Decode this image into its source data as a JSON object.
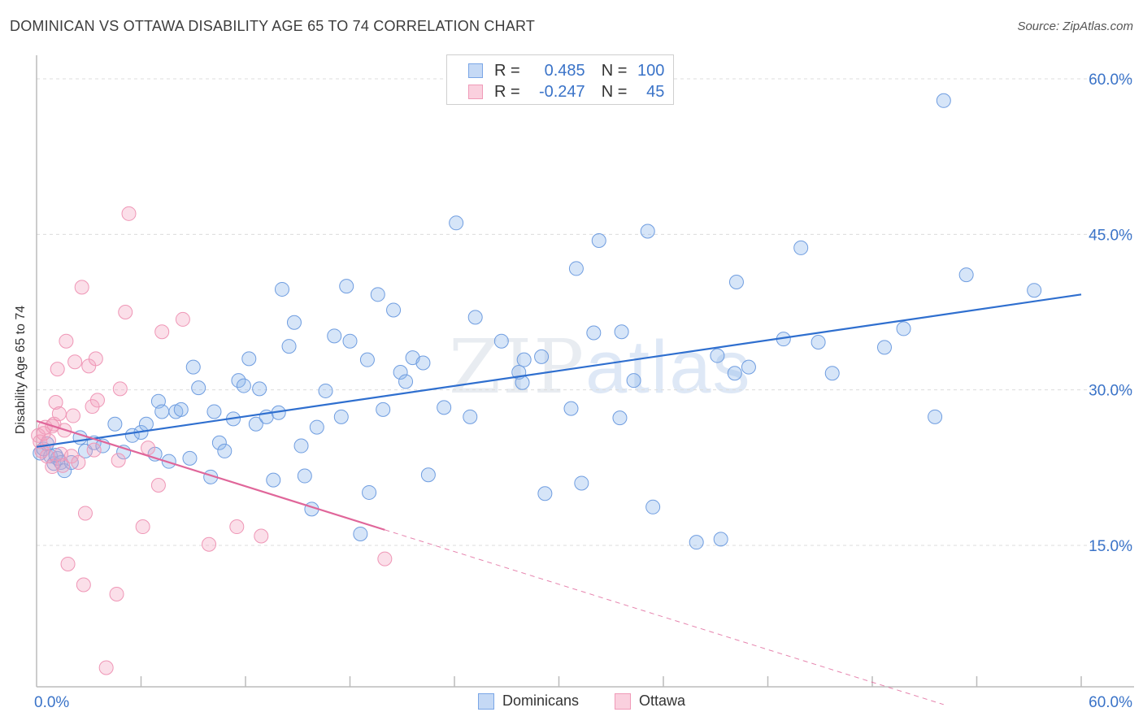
{
  "header": {
    "title": "DOMINICAN VS OTTAWA DISABILITY AGE 65 TO 74 CORRELATION CHART",
    "source": "Source: ZipAtlas.com"
  },
  "watermark": {
    "zip": "ZIP",
    "atlas": "atlas"
  },
  "legend": {
    "rows": [
      {
        "r_label": "R =",
        "r_value": "0.485",
        "n_label": "N =",
        "n_value": "100",
        "color": "#8ab4ec"
      },
      {
        "r_label": "R =",
        "r_value": "-0.247",
        "n_label": "N =",
        "n_value": "45",
        "color": "#f4a3c0"
      }
    ]
  },
  "bottom_legend": {
    "series1": "Dominicans",
    "series2": "Ottawa"
  },
  "chart_data": {
    "type": "scatter",
    "title": "DOMINICAN VS OTTAWA DISABILITY AGE 65 TO 74 CORRELATION CHART",
    "xlabel": "",
    "ylabel": "Disability Age 65 to 74",
    "xlim": [
      0,
      60
    ],
    "ylim": [
      0,
      60
    ],
    "x_tick_labels": [
      "0.0%",
      "60.0%"
    ],
    "y_ticks": [
      15,
      30,
      45,
      60
    ],
    "y_tick_labels": [
      "15.0%",
      "30.0%",
      "45.0%",
      "60.0%"
    ],
    "grid": true,
    "colors": {
      "dominicans": "#5b8fd9",
      "ottawa": "#ee7fa5",
      "trend_blue": "#2f6fcf",
      "trend_pink": "#e0669a",
      "axis_text": "#3a73c8"
    },
    "series": [
      {
        "name": "Dominicans",
        "trend": {
          "x0": 0,
          "y0": 24.5,
          "x1": 60,
          "y1": 39.2
        },
        "points": [
          [
            0.2,
            23.9
          ],
          [
            0.4,
            24.3
          ],
          [
            0.6,
            24.8
          ],
          [
            0.8,
            23.6
          ],
          [
            1.0,
            22.9
          ],
          [
            1.2,
            23.4
          ],
          [
            1.4,
            23.0
          ],
          [
            1.6,
            22.2
          ],
          [
            2.0,
            23.0
          ],
          [
            2.5,
            25.4
          ],
          [
            2.8,
            24.1
          ],
          [
            3.3,
            24.9
          ],
          [
            3.8,
            24.6
          ],
          [
            4.5,
            26.7
          ],
          [
            5.0,
            24.0
          ],
          [
            5.5,
            25.6
          ],
          [
            6.0,
            25.9
          ],
          [
            6.3,
            26.7
          ],
          [
            6.8,
            23.8
          ],
          [
            7.0,
            28.9
          ],
          [
            7.2,
            27.9
          ],
          [
            7.6,
            23.1
          ],
          [
            8.0,
            27.9
          ],
          [
            8.3,
            28.1
          ],
          [
            8.8,
            23.4
          ],
          [
            9.0,
            32.2
          ],
          [
            9.3,
            30.2
          ],
          [
            10.0,
            21.6
          ],
          [
            10.2,
            27.9
          ],
          [
            10.5,
            24.9
          ],
          [
            10.8,
            24.1
          ],
          [
            11.3,
            27.2
          ],
          [
            11.6,
            30.9
          ],
          [
            11.9,
            30.4
          ],
          [
            12.2,
            33.0
          ],
          [
            12.6,
            26.7
          ],
          [
            12.8,
            30.1
          ],
          [
            13.2,
            27.4
          ],
          [
            13.6,
            21.3
          ],
          [
            13.9,
            27.8
          ],
          [
            14.1,
            39.7
          ],
          [
            14.5,
            34.2
          ],
          [
            14.8,
            36.5
          ],
          [
            15.2,
            24.6
          ],
          [
            15.4,
            21.7
          ],
          [
            15.8,
            18.5
          ],
          [
            16.1,
            26.4
          ],
          [
            16.6,
            29.9
          ],
          [
            17.1,
            35.2
          ],
          [
            17.5,
            27.4
          ],
          [
            17.8,
            40.0
          ],
          [
            18.0,
            34.7
          ],
          [
            18.6,
            16.1
          ],
          [
            19.0,
            32.9
          ],
          [
            19.1,
            20.1
          ],
          [
            19.6,
            39.2
          ],
          [
            19.9,
            28.1
          ],
          [
            20.5,
            37.7
          ],
          [
            20.9,
            31.7
          ],
          [
            21.2,
            30.8
          ],
          [
            21.6,
            33.1
          ],
          [
            22.2,
            32.6
          ],
          [
            22.5,
            21.8
          ],
          [
            23.4,
            28.3
          ],
          [
            24.1,
            46.1
          ],
          [
            24.9,
            27.4
          ],
          [
            25.2,
            37.0
          ],
          [
            26.7,
            34.7
          ],
          [
            27.7,
            31.7
          ],
          [
            27.9,
            30.7
          ],
          [
            28.0,
            32.9
          ],
          [
            29.0,
            33.2
          ],
          [
            29.2,
            20.0
          ],
          [
            30.7,
            28.2
          ],
          [
            31.0,
            41.7
          ],
          [
            31.3,
            21.0
          ],
          [
            32.0,
            35.5
          ],
          [
            32.3,
            44.4
          ],
          [
            33.6,
            35.6
          ],
          [
            33.5,
            27.3
          ],
          [
            34.3,
            30.9
          ],
          [
            35.1,
            45.3
          ],
          [
            35.4,
            18.7
          ],
          [
            37.9,
            15.3
          ],
          [
            39.1,
            33.3
          ],
          [
            39.3,
            15.6
          ],
          [
            40.1,
            31.6
          ],
          [
            40.2,
            40.4
          ],
          [
            40.9,
            32.2
          ],
          [
            42.9,
            34.9
          ],
          [
            43.9,
            43.7
          ],
          [
            44.9,
            34.6
          ],
          [
            45.7,
            31.6
          ],
          [
            48.7,
            34.1
          ],
          [
            49.8,
            35.9
          ],
          [
            51.6,
            27.4
          ],
          [
            52.1,
            57.9
          ],
          [
            53.4,
            41.1
          ],
          [
            57.3,
            39.6
          ],
          [
            1.1,
            23.7
          ]
        ]
      },
      {
        "name": "Ottawa",
        "trend": {
          "x0": 0,
          "y0": 27.0,
          "x1": 20,
          "y1": 16.5,
          "dash_to_x": 52.1
        },
        "points": [
          [
            0.1,
            25.6
          ],
          [
            0.2,
            25.0
          ],
          [
            0.3,
            24.1
          ],
          [
            0.5,
            26.4
          ],
          [
            0.6,
            23.6
          ],
          [
            0.7,
            25.1
          ],
          [
            0.9,
            22.6
          ],
          [
            1.0,
            26.7
          ],
          [
            1.1,
            28.8
          ],
          [
            1.2,
            32.0
          ],
          [
            1.3,
            27.7
          ],
          [
            1.4,
            23.8
          ],
          [
            1.5,
            22.7
          ],
          [
            1.6,
            26.1
          ],
          [
            1.7,
            34.7
          ],
          [
            1.8,
            13.2
          ],
          [
            2.0,
            23.6
          ],
          [
            2.1,
            27.5
          ],
          [
            2.2,
            32.7
          ],
          [
            2.4,
            23.0
          ],
          [
            2.6,
            39.9
          ],
          [
            2.7,
            11.2
          ],
          [
            2.8,
            18.1
          ],
          [
            3.0,
            32.3
          ],
          [
            3.2,
            28.4
          ],
          [
            3.3,
            24.2
          ],
          [
            3.4,
            33.0
          ],
          [
            3.5,
            29.0
          ],
          [
            4.0,
            3.2
          ],
          [
            4.6,
            10.3
          ],
          [
            4.7,
            23.2
          ],
          [
            4.8,
            30.1
          ],
          [
            5.1,
            37.5
          ],
          [
            5.3,
            47.0
          ],
          [
            6.1,
            16.8
          ],
          [
            6.4,
            24.4
          ],
          [
            7.0,
            20.8
          ],
          [
            7.2,
            35.6
          ],
          [
            8.4,
            36.8
          ],
          [
            9.9,
            15.1
          ],
          [
            11.5,
            16.8
          ],
          [
            12.9,
            15.9
          ],
          [
            20.0,
            13.7
          ],
          [
            0.4,
            25.8
          ],
          [
            0.9,
            26.5
          ]
        ]
      }
    ]
  }
}
